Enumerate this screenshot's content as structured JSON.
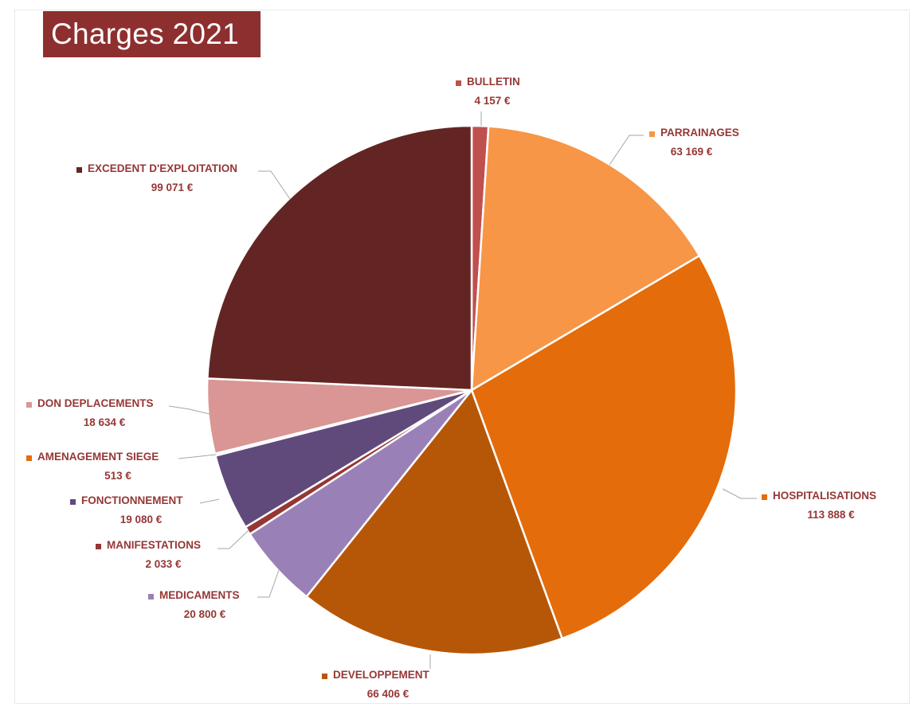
{
  "chart_data": {
    "type": "pie",
    "title": "Charges 2021",
    "slices": [
      {
        "label": "BULLETIN",
        "value": 4157,
        "value_text": "4 157 €",
        "color": "#c0504d"
      },
      {
        "label": "PARRAINAGES",
        "value": 63169,
        "value_text": "63 169 €",
        "color": "#f79646"
      },
      {
        "label": "HOSPITALISATIONS",
        "value": 113888,
        "value_text": "113 888 €",
        "color": "#e46c0a"
      },
      {
        "label": "DEVELOPPEMENT",
        "value": 66406,
        "value_text": "66 406 €",
        "color": "#b65708"
      },
      {
        "label": "MEDICAMENTS",
        "value": 20800,
        "value_text": "20 800 €",
        "color": "#9981b8"
      },
      {
        "label": "MANIFESTATIONS",
        "value": 2033,
        "value_text": "2 033 €",
        "color": "#953735"
      },
      {
        "label": "FONCTIONNEMENT",
        "value": 19080,
        "value_text": "19 080 €",
        "color": "#604a7b"
      },
      {
        "label": "AMENAGEMENT SIEGE",
        "value": 513,
        "value_text": "513 €",
        "color": "#e46c0a"
      },
      {
        "label": "DON DEPLACEMENTS",
        "value": 18634,
        "value_text": "18 634 €",
        "color": "#d99694"
      },
      {
        "label": "EXCEDENT D'EXPLOITATION",
        "value": 99071,
        "value_text": "99 071 €",
        "color": "#632523"
      }
    ],
    "label_color": "#953735",
    "legend": "data labels with leader lines"
  }
}
